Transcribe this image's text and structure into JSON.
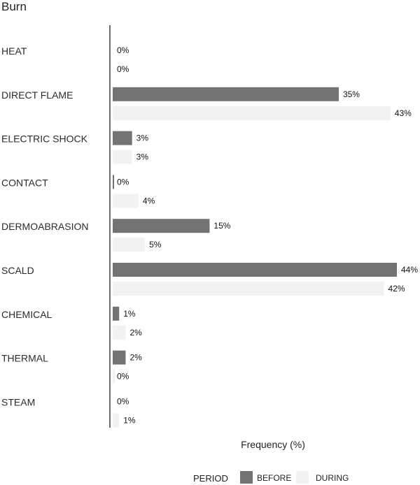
{
  "title": "Burn",
  "chart_data": {
    "type": "bar",
    "orientation": "horizontal",
    "title": "Burn",
    "xlabel": "Frequency (%)",
    "ylabel": "",
    "categories": [
      "HEAT",
      "DIRECT FLAME",
      "ELECTRIC SHOCK",
      "CONTACT",
      "DERMOABRASION",
      "SCALD",
      "CHEMICAL",
      "THERMAL",
      "STEAM"
    ],
    "series": [
      {
        "name": "BEFORE",
        "color": "#737373",
        "values": [
          0,
          35,
          3,
          0,
          15,
          44,
          1,
          2,
          0
        ],
        "labels": [
          "0%",
          "35%",
          "3%",
          "0%",
          "15%",
          "44%",
          "1%",
          "2%",
          "0%"
        ]
      },
      {
        "name": "DURING",
        "color": "#f2f2f2",
        "values": [
          0,
          43,
          3,
          4,
          5,
          42,
          2,
          0,
          1
        ],
        "labels": [
          "0%",
          "43%",
          "3%",
          "4%",
          "5%",
          "42%",
          "2%",
          "0%",
          "1%"
        ]
      }
    ],
    "xlim": [
      0,
      44
    ],
    "grid": false,
    "legend": {
      "title": "PERIOD",
      "position": "bottom"
    }
  }
}
